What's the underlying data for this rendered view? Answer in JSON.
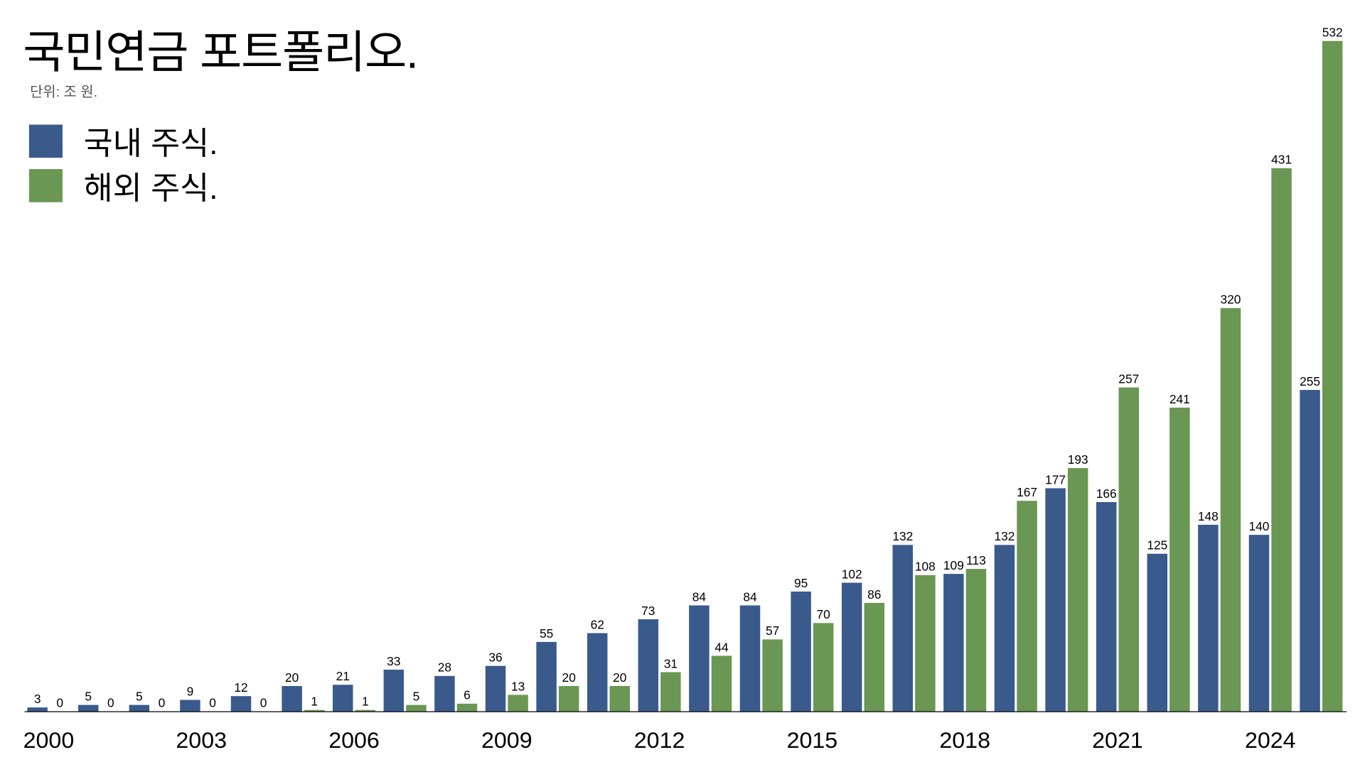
{
  "chart_data": {
    "type": "bar",
    "title": "국민연금 포트폴리오.",
    "subtitle": "단위: 조 원.",
    "xlabel": "",
    "ylabel": "",
    "ylim": [
      0,
      532
    ],
    "grid": false,
    "legend_position": "top-left",
    "categories": [
      "2000",
      "2001",
      "2002",
      "2003",
      "2004",
      "2005",
      "2006",
      "2007",
      "2008",
      "2009",
      "2010",
      "2011",
      "2012",
      "2013",
      "2014",
      "2015",
      "2016",
      "2017",
      "2018",
      "2019",
      "2020",
      "2021",
      "2022",
      "2023",
      "2024",
      "2025"
    ],
    "x_tick_labels": [
      "2000",
      "2003",
      "2006",
      "2009",
      "2012",
      "2015",
      "2018",
      "2021",
      "2024"
    ],
    "series": [
      {
        "name": "국내 주식.",
        "color": "#3a5a8c",
        "values": [
          3,
          5,
          5,
          9,
          12,
          20,
          21,
          33,
          28,
          36,
          55,
          62,
          73,
          84,
          84,
          95,
          102,
          132,
          109,
          132,
          177,
          166,
          125,
          148,
          140,
          255
        ]
      },
      {
        "name": "해외 주식.",
        "color": "#6a9753",
        "values": [
          0,
          0,
          0,
          0,
          0,
          1,
          1,
          5,
          6,
          13,
          20,
          20,
          31,
          44,
          57,
          70,
          86,
          108,
          113,
          167,
          193,
          257,
          241,
          320,
          431,
          532
        ]
      }
    ]
  }
}
